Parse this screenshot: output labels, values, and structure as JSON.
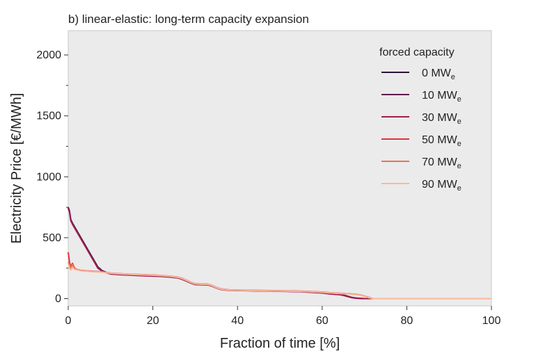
{
  "chart_data": {
    "type": "line",
    "title": "b) linear-elastic: long-term capacity expansion",
    "xlabel": "Fraction of time [%]",
    "ylabel": "Electricity Price [€/MWh]",
    "xlim": [
      0,
      100
    ],
    "ylim": [
      -60,
      2200
    ],
    "xticks": [
      "0",
      "20",
      "40",
      "60",
      "80",
      "100"
    ],
    "yticks": [
      "0",
      "500",
      "1000",
      "1500",
      "2000"
    ],
    "grid": false,
    "background": "#ebebeb",
    "legend_title": "forced capacity",
    "legend_position": "top-right",
    "series": [
      {
        "name": "0 MW",
        "unit_subscript": "e",
        "color": "#2d1238",
        "x": [
          0,
          0.3,
          0.6,
          1,
          2,
          3,
          4,
          5,
          6,
          7,
          8,
          9,
          10,
          12,
          15,
          18,
          20,
          22,
          24,
          26,
          27,
          28,
          29,
          30,
          33,
          34,
          35,
          36,
          38,
          40,
          45,
          50,
          55,
          58,
          60,
          62,
          64,
          65,
          66,
          67,
          68,
          69,
          70,
          71,
          72,
          80,
          90,
          100
        ],
        "y": [
          750,
          720,
          650,
          620,
          560,
          500,
          440,
          380,
          320,
          260,
          230,
          215,
          205,
          200,
          195,
          190,
          188,
          185,
          180,
          172,
          160,
          145,
          130,
          118,
          115,
          105,
          90,
          78,
          70,
          68,
          65,
          62,
          58,
          52,
          48,
          40,
          35,
          30,
          20,
          10,
          5,
          2,
          0,
          0,
          0,
          0,
          0,
          0
        ]
      },
      {
        "name": "10 MW",
        "unit_subscript": "e",
        "color": "#5c1a4e",
        "x": [
          0,
          0.3,
          0.6,
          1,
          2,
          3,
          4,
          5,
          6,
          7,
          8,
          9,
          10,
          12,
          15,
          18,
          20,
          22,
          24,
          26,
          27,
          28,
          29,
          30,
          33,
          34,
          35,
          36,
          38,
          40,
          45,
          50,
          55,
          58,
          60,
          62,
          64,
          65,
          66,
          67,
          68,
          69,
          70,
          71,
          72,
          80,
          90,
          100
        ],
        "y": [
          745,
          715,
          645,
          615,
          555,
          495,
          435,
          375,
          315,
          255,
          228,
          213,
          203,
          198,
          193,
          188,
          186,
          183,
          178,
          170,
          158,
          143,
          128,
          116,
          113,
          103,
          88,
          76,
          69,
          67,
          64,
          61,
          57,
          51,
          47,
          39,
          34,
          28,
          18,
          9,
          4,
          1,
          0,
          0,
          0,
          0,
          0,
          0
        ]
      },
      {
        "name": "30 MW",
        "unit_subscript": "e",
        "color": "#a01c4f",
        "x": [
          0,
          0.3,
          0.6,
          1,
          2,
          3,
          4,
          5,
          6,
          7,
          8,
          9,
          10,
          12,
          15,
          18,
          20,
          22,
          24,
          26,
          27,
          28,
          29,
          30,
          33,
          34,
          35,
          36,
          38,
          40,
          45,
          50,
          55,
          58,
          60,
          62,
          64,
          65,
          66,
          67,
          68,
          69,
          70,
          71,
          72,
          80,
          90,
          100
        ],
        "y": [
          740,
          710,
          640,
          610,
          550,
          490,
          430,
          370,
          310,
          250,
          225,
          212,
          202,
          197,
          192,
          187,
          185,
          182,
          177,
          169,
          157,
          142,
          127,
          115,
          112,
          102,
          87,
          75,
          68,
          66,
          63,
          60,
          56,
          50,
          46,
          38,
          33,
          27,
          17,
          8,
          3,
          1,
          0,
          0,
          0,
          0,
          0,
          0
        ]
      },
      {
        "name": "50 MW",
        "unit_subscript": "e",
        "color": "#e0313d",
        "x": [
          0,
          0.3,
          0.6,
          1,
          1.5,
          2,
          3,
          4,
          6,
          8,
          10,
          12,
          15,
          18,
          20,
          22,
          24,
          26,
          27,
          28,
          29,
          30,
          33,
          34,
          35,
          36,
          38,
          40,
          45,
          50,
          55,
          58,
          60,
          62,
          64,
          66,
          68,
          69,
          70,
          71,
          72,
          80,
          90,
          100
        ],
        "y": [
          380,
          300,
          260,
          290,
          250,
          240,
          232,
          228,
          224,
          220,
          210,
          205,
          200,
          196,
          194,
          190,
          185,
          176,
          165,
          150,
          134,
          122,
          118,
          108,
          92,
          80,
          72,
          70,
          67,
          64,
          61,
          57,
          54,
          48,
          44,
          40,
          36,
          30,
          20,
          10,
          0,
          0,
          0,
          0
        ]
      },
      {
        "name": "70 MW",
        "unit_subscript": "e",
        "color": "#f3704f",
        "x": [
          0,
          0.3,
          0.6,
          1,
          1.5,
          2,
          3,
          4,
          6,
          8,
          10,
          12,
          15,
          18,
          20,
          22,
          24,
          26,
          27,
          28,
          29,
          30,
          33,
          34,
          35,
          36,
          38,
          40,
          45,
          50,
          55,
          58,
          60,
          62,
          64,
          66,
          68,
          69,
          70,
          71,
          72,
          80,
          90,
          100
        ],
        "y": [
          300,
          280,
          250,
          280,
          245,
          238,
          230,
          226,
          222,
          218,
          209,
          204,
          199,
          195,
          193,
          189,
          184,
          175,
          164,
          149,
          133,
          121,
          117,
          107,
          91,
          79,
          71,
          69,
          66,
          63,
          60,
          56,
          53,
          47,
          43,
          39,
          35,
          29,
          19,
          9,
          0,
          0,
          0,
          0
        ]
      },
      {
        "name": "90 MW",
        "unit_subscript": "e",
        "color": "#f7b89a",
        "x": [
          0,
          0.3,
          0.6,
          1,
          1.5,
          2,
          3,
          4,
          6,
          8,
          10,
          12,
          15,
          18,
          20,
          22,
          24,
          26,
          27,
          28,
          29,
          30,
          33,
          34,
          35,
          36,
          38,
          40,
          45,
          50,
          55,
          58,
          60,
          62,
          64,
          66,
          68,
          69,
          70,
          71,
          72,
          80,
          90,
          100
        ],
        "y": [
          260,
          250,
          235,
          255,
          240,
          236,
          229,
          225,
          221,
          217,
          208,
          203,
          198,
          194,
          192,
          188,
          183,
          174,
          163,
          148,
          132,
          120,
          116,
          106,
          90,
          78,
          70,
          68,
          65,
          62,
          59,
          55,
          52,
          46,
          42,
          38,
          34,
          28,
          18,
          8,
          0,
          0,
          0,
          0
        ]
      }
    ]
  }
}
